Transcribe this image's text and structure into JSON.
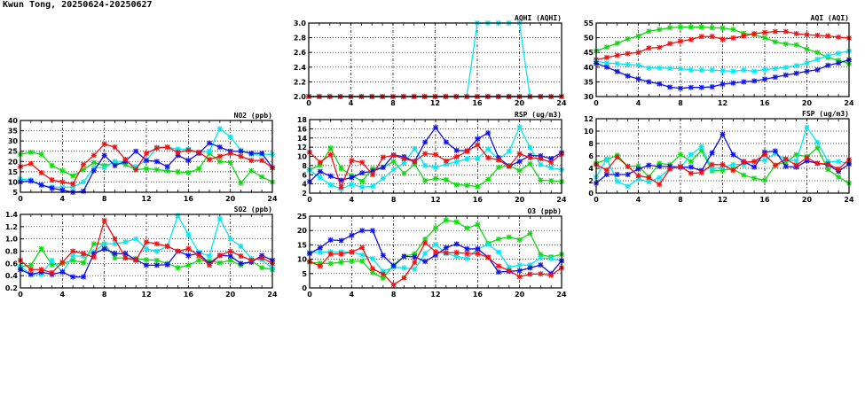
{
  "title": "Kwun Tong, 20250624-20250627",
  "colors": {
    "cyan": "#00e8f0",
    "blue": "#1010e8",
    "red": "#f01010",
    "green": "#10d810"
  },
  "chart_data": [
    {
      "id": "aqhi",
      "type": "line",
      "title": "AQHI (AQHI)",
      "ylim": [
        2.0,
        3.0
      ],
      "yticks": [
        "2.0",
        "2.2",
        "2.4",
        "2.6",
        "2.8",
        "3.0"
      ],
      "xlim": [
        0,
        24
      ],
      "xticks": [
        "0",
        "4",
        "8",
        "12",
        "16",
        "20",
        "24"
      ],
      "grid": true,
      "series": [
        {
          "name": "green",
          "values": [
            2,
            2,
            2,
            2,
            2,
            2,
            2,
            2,
            2,
            2,
            2,
            2,
            2,
            2,
            2,
            2,
            2,
            2,
            2,
            2,
            2,
            2,
            2,
            2,
            2
          ]
        },
        {
          "name": "blue",
          "values": [
            2,
            2,
            2,
            2,
            2,
            2,
            2,
            2,
            2,
            2,
            2,
            2,
            2,
            2,
            2,
            2,
            2,
            2,
            2,
            2,
            2,
            2,
            2,
            2,
            2
          ]
        },
        {
          "name": "cyan",
          "values": [
            2,
            2,
            2,
            2,
            2,
            2,
            2,
            2,
            2,
            2,
            2,
            2,
            2,
            2,
            2,
            2,
            3,
            3,
            3,
            3,
            3,
            2,
            2,
            2,
            2
          ]
        },
        {
          "name": "red",
          "values": [
            2,
            2,
            2,
            2,
            2,
            2,
            2,
            2,
            2,
            2,
            2,
            2,
            2,
            2,
            2,
            2,
            2,
            2,
            2,
            2,
            2,
            2,
            2,
            2,
            2
          ]
        }
      ]
    },
    {
      "id": "aqi",
      "type": "line",
      "title": "AQI (AQI)",
      "ylim": [
        30,
        55
      ],
      "yticks": [
        "30",
        "35",
        "40",
        "45",
        "50",
        "55"
      ],
      "xlim": [
        0,
        24
      ],
      "xticks": [
        "0",
        "4",
        "8",
        "12",
        "16",
        "20",
        "24"
      ],
      "grid": true,
      "series": [
        {
          "name": "green",
          "values": [
            45.5,
            46.8,
            48.1,
            49.6,
            50.6,
            52.2,
            52.8,
            53.4,
            53.6,
            53.6,
            53.6,
            53.4,
            53.3,
            52.8,
            51.5,
            51,
            50,
            48.6,
            47.9,
            47.6,
            46.1,
            45,
            43.3,
            42.3,
            41.2
          ]
        },
        {
          "name": "red",
          "values": [
            42.5,
            43.3,
            44,
            44.6,
            45,
            46.5,
            46.7,
            48,
            48.8,
            49.4,
            50.4,
            50.4,
            49.5,
            49.9,
            50.6,
            51.4,
            51.8,
            52.1,
            52.1,
            51.4,
            51,
            50.8,
            50.6,
            50.2,
            49.9
          ]
        },
        {
          "name": "cyan",
          "values": [
            42,
            41.4,
            41.2,
            40.9,
            40.7,
            39.7,
            39.7,
            39.6,
            39.5,
            39,
            39,
            39,
            38.8,
            38.6,
            39,
            38.6,
            39.2,
            39.5,
            39.9,
            40.5,
            41.4,
            42.7,
            43.9,
            44.7,
            45.5
          ]
        },
        {
          "name": "blue",
          "values": [
            41.3,
            40,
            38.5,
            37,
            36,
            35,
            34.3,
            33.2,
            32.8,
            33.1,
            33.1,
            33.3,
            34.2,
            34.6,
            35,
            35.3,
            35.9,
            36.6,
            37.3,
            37.9,
            38.6,
            39.1,
            40.6,
            41.4,
            42.5
          ]
        }
      ]
    },
    {
      "id": "no2",
      "type": "line",
      "title": "NO2 (ppb)",
      "ylim": [
        5,
        40
      ],
      "yticks": [
        "5",
        "10",
        "15",
        "20",
        "25",
        "30",
        "35",
        "40"
      ],
      "xlim": [
        0,
        24
      ],
      "xticks": [
        "0",
        "4",
        "8",
        "12",
        "16",
        "20",
        "24"
      ],
      "grid": true,
      "series": [
        {
          "name": "green",
          "values": [
            23.5,
            24.5,
            23.5,
            18,
            15.5,
            13,
            16,
            19.5,
            18,
            19.5,
            18.5,
            16,
            16.5,
            16,
            15.5,
            15,
            14.5,
            16.5,
            24,
            20,
            19.5,
            9.5,
            15.5,
            12.5,
            10
          ]
        },
        {
          "name": "cyan",
          "values": [
            11.5,
            11,
            8.5,
            7.5,
            7.5,
            7.5,
            10,
            17,
            17,
            20,
            20,
            17.5,
            20.5,
            27,
            27,
            26,
            26,
            24.5,
            25,
            36,
            32,
            25.5,
            23.5,
            23.5,
            23.5
          ]
        },
        {
          "name": "blue",
          "values": [
            10,
            10.5,
            8.5,
            7,
            6,
            5,
            5.5,
            15.5,
            23,
            18,
            20,
            25,
            20.5,
            20,
            17.5,
            23,
            20.5,
            24,
            29,
            27,
            25,
            25,
            24,
            24,
            17
          ]
        },
        {
          "name": "red",
          "values": [
            17.5,
            19,
            14.5,
            11,
            10,
            9,
            18.5,
            23,
            28.5,
            27,
            21,
            16,
            24,
            26.5,
            27,
            24.5,
            25.5,
            24.5,
            21,
            22.5,
            24,
            22.5,
            20.5,
            20.5,
            17
          ]
        }
      ]
    },
    {
      "id": "rsp",
      "type": "line",
      "title": "RSP (ug/m3)",
      "ylim": [
        2,
        18
      ],
      "yticks": [
        "2",
        "4",
        "6",
        "8",
        "10",
        "12",
        "14",
        "16",
        "18"
      ],
      "xlim": [
        0,
        24
      ],
      "xticks": [
        "0",
        "4",
        "8",
        "12",
        "16",
        "20",
        "24"
      ],
      "grid": true,
      "series": [
        {
          "name": "green",
          "values": [
            7.1,
            8.1,
            11.8,
            7.4,
            5.8,
            4.6,
            7.3,
            7.6,
            8.9,
            6.3,
            8.3,
            4.7,
            5.2,
            4.9,
            3.8,
            3.7,
            3.4,
            5,
            7.6,
            8,
            6.9,
            8.4,
            4.8,
            4.7,
            4.5
          ]
        },
        {
          "name": "cyan",
          "values": [
            7,
            5.4,
            3.8,
            2.9,
            3.9,
            3.3,
            3.5,
            5.2,
            7.1,
            8.6,
            11.7,
            8,
            7.6,
            8.3,
            8.8,
            9.5,
            9.5,
            11.6,
            9.3,
            11.1,
            16.4,
            11.9,
            8.2,
            7.5,
            7.1
          ]
        },
        {
          "name": "blue",
          "values": [
            4.5,
            6.7,
            5.7,
            4.8,
            5.4,
            6.4,
            6.8,
            7.6,
            10.3,
            9.9,
            8.9,
            13.1,
            16.3,
            13.1,
            11.3,
            11.2,
            13.8,
            15.1,
            9.7,
            7.9,
            8.9,
            10.2,
            10.1,
            9.5,
            10.8
          ]
        },
        {
          "name": "red",
          "values": [
            10.9,
            8.7,
            10.4,
            3.3,
            9.1,
            8.7,
            6,
            9.8,
            10.2,
            9.5,
            8.9,
            10.6,
            10.4,
            9,
            9.9,
            11.1,
            12.5,
            9.7,
            9.2,
            7.8,
            10.6,
            9.7,
            9.5,
            8.7,
            10.5
          ]
        }
      ]
    },
    {
      "id": "fsp",
      "type": "line",
      "title": "FSP (ug/m3)",
      "ylim": [
        0,
        12
      ],
      "yticks": [
        "0",
        "2",
        "4",
        "6",
        "8",
        "10",
        "12"
      ],
      "xlim": [
        0,
        24
      ],
      "xticks": [
        "0",
        "4",
        "8",
        "12",
        "16",
        "20",
        "24"
      ],
      "grid": true,
      "series": [
        {
          "name": "green",
          "values": [
            4.8,
            5.4,
            6.1,
            4.3,
            4.4,
            2.6,
            4.8,
            4.6,
            6.2,
            5.1,
            6.9,
            3.6,
            3.7,
            3.9,
            2.9,
            2.4,
            2.1,
            4.5,
            5,
            6.2,
            5.9,
            7.3,
            3.8,
            2.6,
            1.6
          ]
        },
        {
          "name": "cyan",
          "values": [
            2.6,
            5.5,
            1.9,
            1.1,
            2.3,
            1.8,
            2.5,
            4,
            4.1,
            6.2,
            7.5,
            3.9,
            4.2,
            4.6,
            4.6,
            5.1,
            5.3,
            6.4,
            5.4,
            5.2,
            10.6,
            8.2,
            5.1,
            5.1,
            4.8
          ]
        },
        {
          "name": "blue",
          "values": [
            1.6,
            3,
            3,
            3,
            3.9,
            4.5,
            4.3,
            4.3,
            4.2,
            4.2,
            3.6,
            6.5,
            9.5,
            6.2,
            5.1,
            4.2,
            6.6,
            6.8,
            4.3,
            4.2,
            5.2,
            4.8,
            4.6,
            3.5,
            4.7
          ]
        },
        {
          "name": "red",
          "values": [
            4.6,
            3.7,
            5.8,
            4.3,
            2.8,
            2.5,
            1.4,
            3.9,
            4.3,
            3.2,
            3.3,
            4.6,
            4.6,
            3.7,
            5,
            5.1,
            6.2,
            4.5,
            5.5,
            4.5,
            5.7,
            4.8,
            4.7,
            3.9,
            5.4
          ]
        }
      ]
    },
    {
      "id": "so2",
      "type": "line",
      "title": "SO2 (ppb)",
      "ylim": [
        0.2,
        1.4
      ],
      "yticks": [
        "0.2",
        "0.4",
        "0.6",
        "0.8",
        "1.0",
        "1.2",
        "1.4"
      ],
      "xlim": [
        0,
        24
      ],
      "xticks": [
        "0",
        "4",
        "8",
        "12",
        "16",
        "20",
        "24"
      ],
      "grid": true,
      "series": [
        {
          "name": "green",
          "values": [
            0.55,
            0.57,
            0.84,
            0.58,
            0.6,
            0.65,
            0.61,
            0.92,
            0.92,
            0.69,
            0.69,
            0.68,
            0.66,
            0.65,
            0.6,
            0.53,
            0.57,
            0.65,
            0.64,
            0.61,
            0.65,
            0.57,
            0.64,
            0.53,
            0.5
          ]
        },
        {
          "name": "cyan",
          "values": [
            0.55,
            0.42,
            0.42,
            0.65,
            0.46,
            0.72,
            0.72,
            0.79,
            0.92,
            0.92,
            0.95,
            1.0,
            0.84,
            0.8,
            0.88,
            1.38,
            1.07,
            0.78,
            0.72,
            1.33,
            1.0,
            0.88,
            0.68,
            0.66,
            0.52
          ]
        },
        {
          "name": "blue",
          "values": [
            0.5,
            0.42,
            0.46,
            0.42,
            0.46,
            0.38,
            0.38,
            0.76,
            0.84,
            0.76,
            0.76,
            0.66,
            0.57,
            0.57,
            0.58,
            0.8,
            0.73,
            0.76,
            0.6,
            0.73,
            0.72,
            0.6,
            0.62,
            0.73,
            0.65
          ]
        },
        {
          "name": "red",
          "values": [
            0.65,
            0.5,
            0.5,
            0.45,
            0.62,
            0.8,
            0.76,
            0.7,
            1.3,
            1.0,
            0.69,
            0.65,
            0.95,
            0.92,
            0.88,
            0.8,
            0.84,
            0.73,
            0.57,
            0.73,
            0.8,
            0.72,
            0.65,
            0.69,
            0.6
          ]
        }
      ]
    },
    {
      "id": "o3",
      "type": "line",
      "title": "O3 (ppb)",
      "ylim": [
        0,
        25
      ],
      "yticks": [
        "0",
        "5",
        "10",
        "15",
        "20",
        "25"
      ],
      "xlim": [
        0,
        24
      ],
      "xticks": [
        "0",
        "4",
        "8",
        "12",
        "16",
        "20",
        "24"
      ],
      "grid": true,
      "series": [
        {
          "name": "green",
          "values": [
            9,
            8.6,
            8.5,
            9,
            9.3,
            9.3,
            5.3,
            3.4,
            8,
            11,
            11.9,
            17,
            20.9,
            23.6,
            23,
            20.8,
            22.1,
            15.5,
            17,
            17.7,
            16.8,
            19,
            11.6,
            10.8,
            11.7
          ]
        },
        {
          "name": "cyan",
          "values": [
            12.3,
            12.4,
            12.5,
            12.5,
            12.5,
            11.5,
            10.2,
            5.8,
            7.2,
            7,
            6.5,
            12,
            15.2,
            12,
            11,
            10.3,
            13.5,
            15.2,
            12.5,
            7.2,
            8,
            8,
            10.5,
            10.2,
            9.5
          ]
        },
        {
          "name": "blue",
          "values": [
            12,
            14,
            16.7,
            16.5,
            18.3,
            20,
            20,
            11.3,
            7.7,
            11,
            10.8,
            9.2,
            11.4,
            14,
            15.3,
            13.6,
            13.6,
            10.7,
            5.5,
            5.8,
            6,
            7,
            8,
            5,
            9.5
          ]
        },
        {
          "name": "red",
          "values": [
            9.2,
            7.6,
            11.8,
            11.8,
            12.5,
            14.1,
            6.7,
            4.8,
            1.1,
            3.5,
            8.9,
            15.7,
            12.6,
            12.2,
            12.3,
            12,
            12,
            10.6,
            7.6,
            6,
            3.9,
            4.8,
            4.9,
            4.4,
            7
          ]
        }
      ]
    }
  ]
}
